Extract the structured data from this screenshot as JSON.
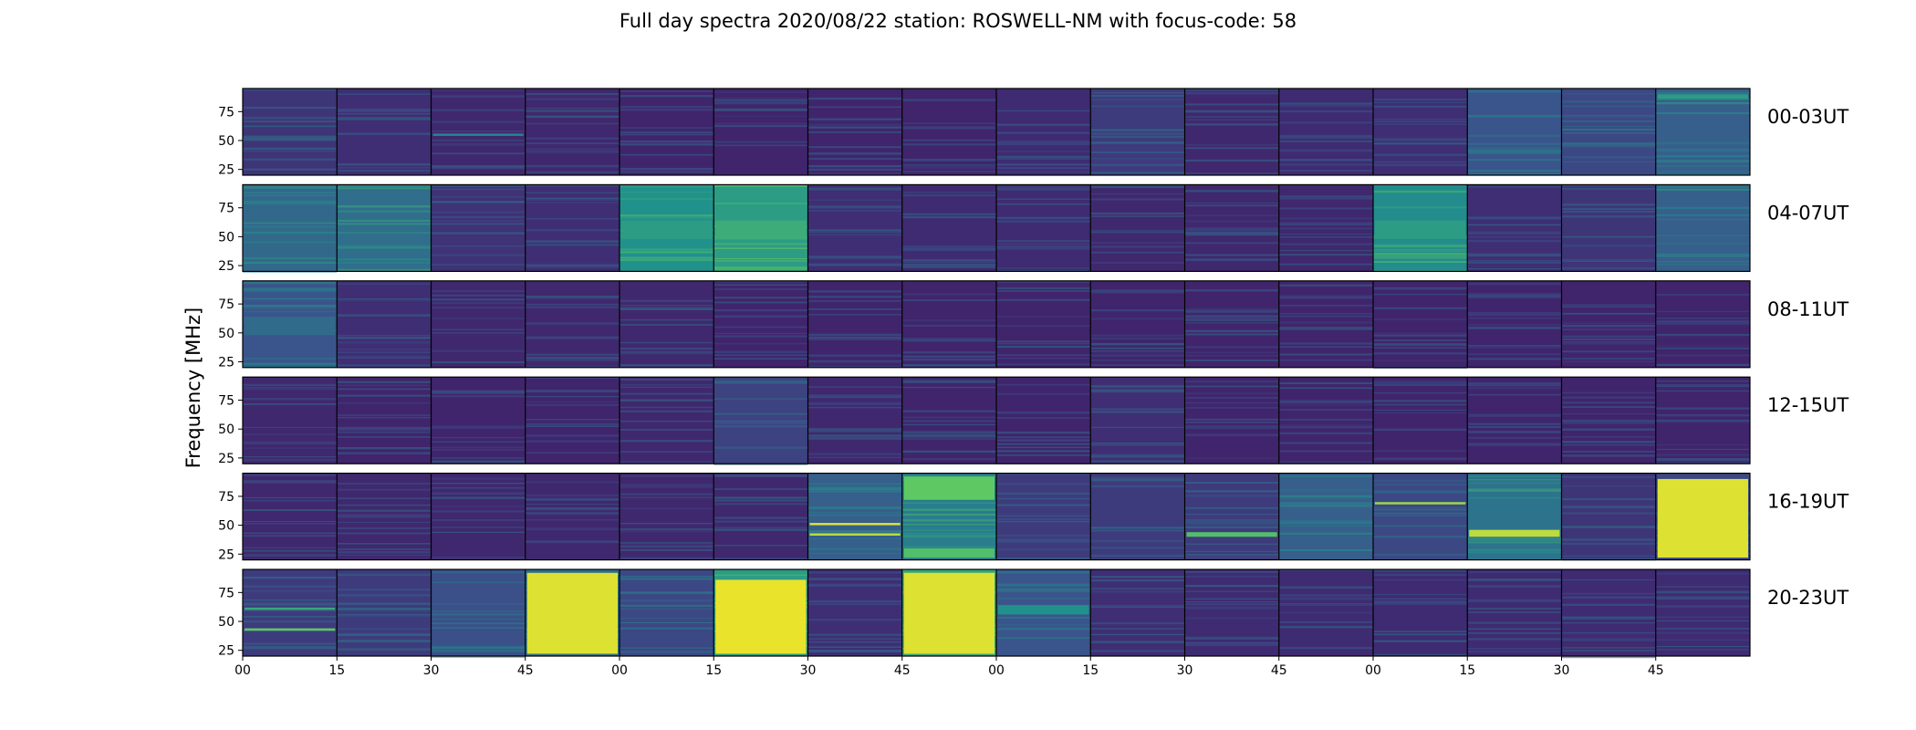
{
  "title": "Full day spectra 2020/08/22 station: ROSWELL-NM with focus-code: 58",
  "chart_data": {
    "type": "heatmap",
    "title": "Full day spectra 2020/08/22 station: ROSWELL-NM with focus-code: 58",
    "ylabel": "Frequency [MHz]",
    "xlabel": "",
    "ylim": [
      20,
      95
    ],
    "y_ticks": [
      "25",
      "50",
      "75"
    ],
    "x_ticks": [
      "00",
      "15",
      "30",
      "45",
      "00",
      "15",
      "30",
      "45",
      "00",
      "15",
      "30",
      "45",
      "00",
      "15",
      "30",
      "45"
    ],
    "x_tick_positions": [
      0,
      1,
      2,
      3,
      4,
      5,
      6,
      7,
      8,
      9,
      10,
      11,
      12,
      13,
      14,
      15
    ],
    "panels_per_row": 16,
    "panel_minutes": 15,
    "colormap": [
      "#440154",
      "#3b528b",
      "#21918c",
      "#5ec962",
      "#fde725"
    ],
    "rows": [
      {
        "label": "00-03UT",
        "intensity": [
          0.16,
          0.14,
          0.12,
          0.12,
          0.11,
          0.11,
          0.11,
          0.11,
          0.13,
          0.18,
          0.12,
          0.13,
          0.14,
          0.26,
          0.22,
          0.3
        ]
      },
      {
        "label": "04-07UT",
        "intensity": [
          0.34,
          0.36,
          0.15,
          0.14,
          0.5,
          0.55,
          0.14,
          0.13,
          0.13,
          0.12,
          0.12,
          0.12,
          0.48,
          0.14,
          0.16,
          0.3
        ]
      },
      {
        "label": "08-11UT",
        "intensity": [
          0.26,
          0.14,
          0.12,
          0.12,
          0.12,
          0.11,
          0.11,
          0.11,
          0.11,
          0.11,
          0.11,
          0.11,
          0.11,
          0.11,
          0.11,
          0.11
        ]
      },
      {
        "label": "12-15UT",
        "intensity": [
          0.12,
          0.11,
          0.11,
          0.11,
          0.12,
          0.2,
          0.12,
          0.11,
          0.11,
          0.14,
          0.11,
          0.11,
          0.11,
          0.11,
          0.11,
          0.11
        ]
      },
      {
        "label": "16-19UT",
        "intensity": [
          0.12,
          0.12,
          0.12,
          0.12,
          0.12,
          0.12,
          0.3,
          0.42,
          0.18,
          0.18,
          0.18,
          0.3,
          0.22,
          0.38,
          0.16,
          0.22
        ]
      },
      {
        "label": "20-23UT",
        "intensity": [
          0.18,
          0.18,
          0.24,
          0.36,
          0.22,
          0.55,
          0.14,
          0.6,
          0.26,
          0.14,
          0.13,
          0.13,
          0.13,
          0.13,
          0.13,
          0.13
        ]
      }
    ],
    "bright_bands": [
      {
        "row": 0,
        "panel": 2,
        "freq_low": 54,
        "freq_high": 56,
        "level": 0.45
      },
      {
        "row": 0,
        "panel": 15,
        "freq_low": 86,
        "freq_high": 90,
        "level": 0.55
      },
      {
        "row": 1,
        "panel": 4,
        "freq_low": 48,
        "freq_high": 64,
        "level": 0.55
      },
      {
        "row": 1,
        "panel": 5,
        "freq_low": 48,
        "freq_high": 64,
        "level": 0.62
      },
      {
        "row": 1,
        "panel": 12,
        "freq_low": 48,
        "freq_high": 64,
        "level": 0.55
      },
      {
        "row": 2,
        "panel": 0,
        "freq_low": 48,
        "freq_high": 64,
        "level": 0.35
      },
      {
        "row": 4,
        "panel": 6,
        "freq_low": 50,
        "freq_high": 52,
        "level": 0.95
      },
      {
        "row": 4,
        "panel": 6,
        "freq_low": 41,
        "freq_high": 43,
        "level": 0.9
      },
      {
        "row": 4,
        "panel": 7,
        "freq_low": 72,
        "freq_high": 92,
        "level": 0.75
      },
      {
        "row": 4,
        "panel": 7,
        "freq_low": 22,
        "freq_high": 30,
        "level": 0.7
      },
      {
        "row": 4,
        "panel": 10,
        "freq_low": 40,
        "freq_high": 44,
        "level": 0.7
      },
      {
        "row": 4,
        "panel": 12,
        "freq_low": 68,
        "freq_high": 70,
        "level": 0.85
      },
      {
        "row": 4,
        "panel": 13,
        "freq_low": 40,
        "freq_high": 46,
        "level": 0.9
      },
      {
        "row": 4,
        "panel": 15,
        "freq_low": 22,
        "freq_high": 90,
        "level": 0.95
      },
      {
        "row": 5,
        "panel": 0,
        "freq_low": 42,
        "freq_high": 44,
        "level": 0.75
      },
      {
        "row": 5,
        "panel": 0,
        "freq_low": 60,
        "freq_high": 62,
        "level": 0.6
      },
      {
        "row": 5,
        "panel": 3,
        "freq_low": 22,
        "freq_high": 92,
        "level": 0.95
      },
      {
        "row": 5,
        "panel": 5,
        "freq_low": 22,
        "freq_high": 86,
        "level": 0.97
      },
      {
        "row": 5,
        "panel": 7,
        "freq_low": 22,
        "freq_high": 92,
        "level": 0.95
      },
      {
        "row": 5,
        "panel": 8,
        "freq_low": 56,
        "freq_high": 64,
        "level": 0.5
      }
    ]
  }
}
